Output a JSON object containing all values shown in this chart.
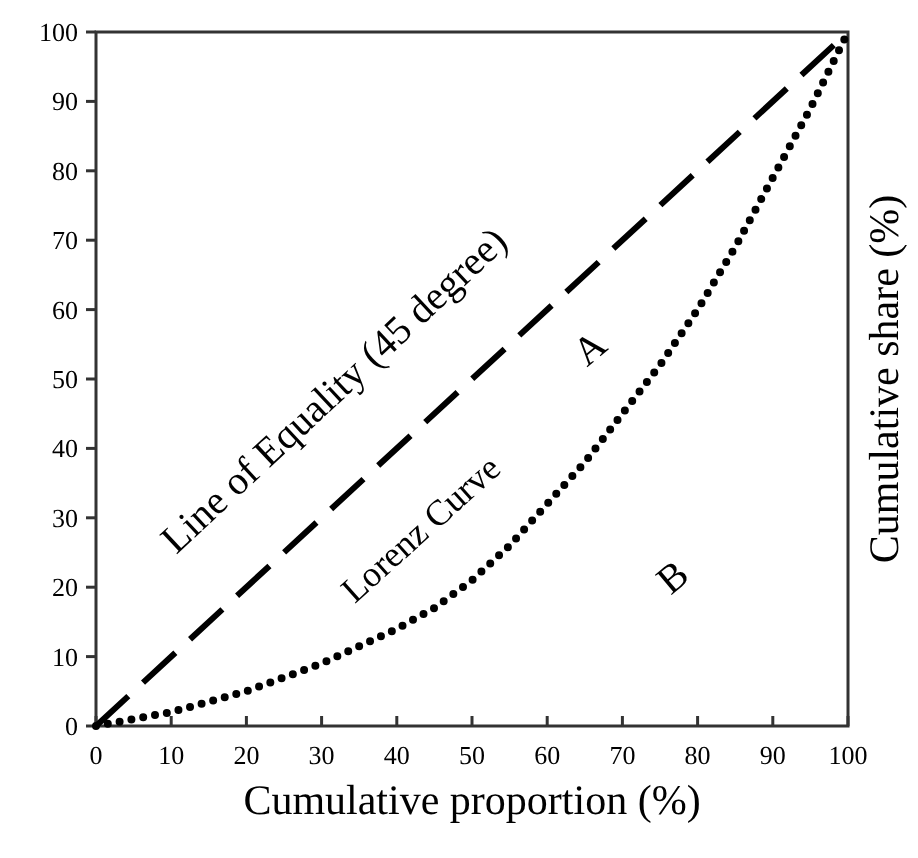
{
  "chart_data": {
    "type": "line",
    "xlabel": "Cumulative proportion (%)",
    "ylabel": "Cumulative share (%)",
    "xlim": [
      0,
      100
    ],
    "ylim": [
      0,
      100
    ],
    "xticks": [
      0,
      10,
      20,
      30,
      40,
      50,
      60,
      70,
      80,
      90,
      100
    ],
    "yticks": [
      0,
      10,
      20,
      30,
      40,
      50,
      60,
      70,
      80,
      90,
      100
    ],
    "grid": false,
    "series": [
      {
        "color": "#000000",
        "line_style": "dashed",
        "x": [
          0,
          100
        ],
        "values": [
          0,
          100
        ]
      },
      {
        "color": "#000000",
        "line_style": "dotted",
        "x": [
          0,
          5,
          10,
          15,
          20,
          25,
          30,
          35,
          40,
          45,
          50,
          55,
          60,
          65,
          70,
          75,
          80,
          85,
          90,
          95,
          100
        ],
        "values": [
          0,
          1,
          2,
          3.5,
          5,
          7,
          9,
          11.5,
          14,
          17,
          21,
          26,
          32,
          38,
          45,
          52,
          60,
          69,
          79,
          89,
          100
        ]
      }
    ],
    "annotations": [
      "Line of Equality (45 degree)",
      "Lorenz Curve",
      "A",
      "B"
    ]
  }
}
